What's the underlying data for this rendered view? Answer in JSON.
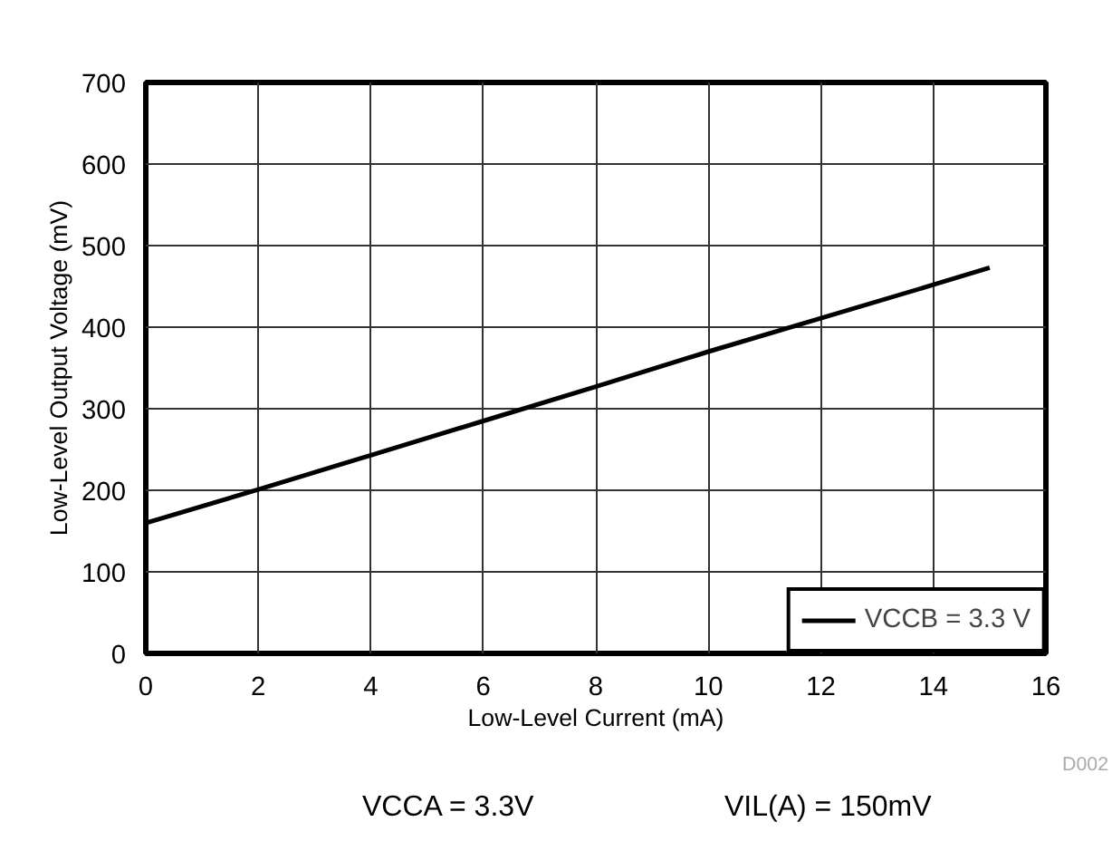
{
  "chart_data": {
    "type": "line",
    "xlabel": "Low-Level Current (mA)",
    "ylabel": "Low-Level Output Voltage (mV)",
    "x": [
      0,
      2,
      4,
      6,
      8,
      10,
      12,
      14,
      15
    ],
    "series": [
      {
        "name": "VCCB = 3.3 V",
        "color": "#000000",
        "values": [
          160,
          201,
          243,
          285,
          327,
          370,
          411,
          452,
          473
        ]
      }
    ],
    "xlim": [
      0,
      16
    ],
    "xticks": [
      0,
      2,
      4,
      6,
      8,
      10,
      12,
      14,
      16
    ],
    "ylim": [
      0,
      700
    ],
    "yticks": [
      0,
      100,
      200,
      300,
      400,
      500,
      600,
      700
    ],
    "grid": true,
    "legend": "bottom right",
    "line_style": "solid",
    "annotations": [
      "D002",
      "VCCA = 3.3V",
      "VIL(A) = 150mV"
    ]
  }
}
